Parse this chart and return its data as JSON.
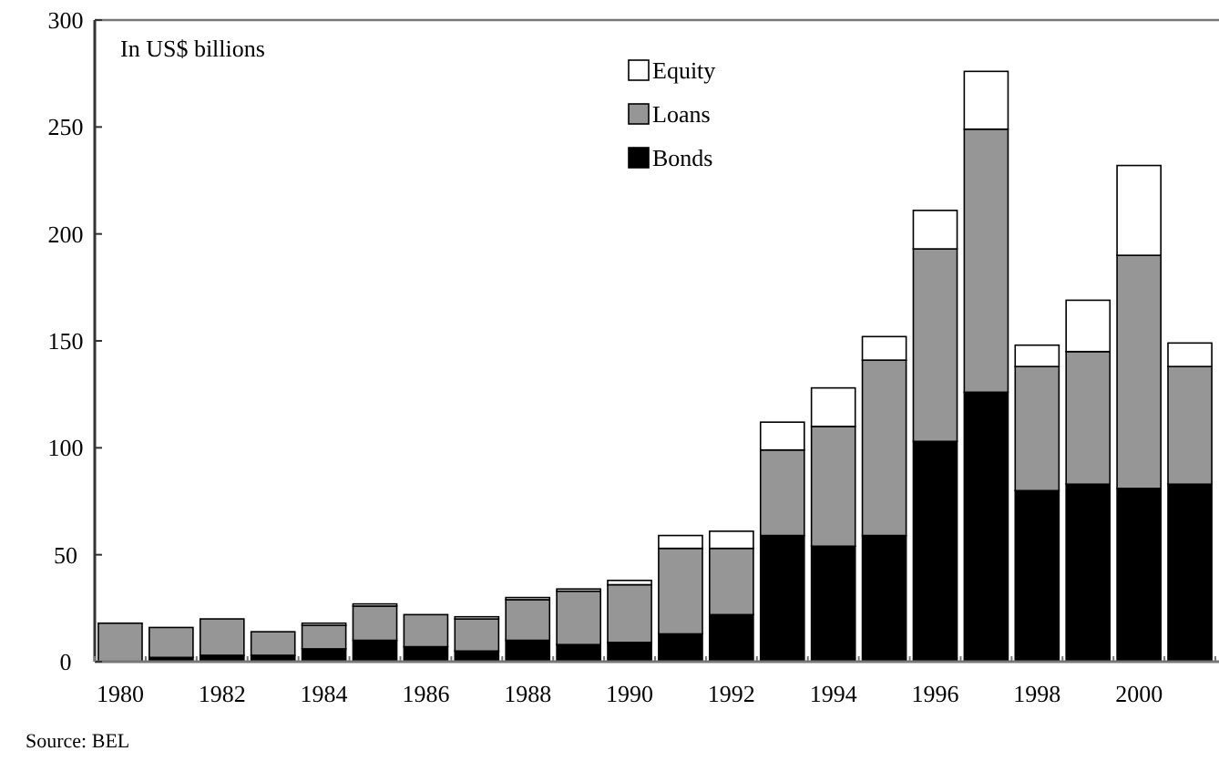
{
  "chart_data": {
    "type": "bar",
    "stacked": true,
    "ylabel": "In US$ billions",
    "categories": [
      "1980",
      null,
      "1982",
      null,
      "1984",
      null,
      "1986",
      null,
      "1988",
      null,
      "1990",
      null,
      "1992",
      null,
      "1994",
      null,
      "1996",
      null,
      "1998",
      null,
      "2000",
      null
    ],
    "series": [
      {
        "name": "Bonds",
        "color": "#000000",
        "values": [
          null,
          2,
          3,
          3,
          6,
          10,
          7,
          5,
          10,
          8,
          9,
          13,
          22,
          59,
          54,
          59,
          103,
          126,
          80,
          83,
          81,
          83
        ]
      },
      {
        "name": "Loans",
        "color": "#969696",
        "values": [
          18,
          14,
          17,
          11,
          11,
          16,
          15,
          15,
          19,
          25,
          27,
          40,
          31,
          40,
          56,
          82,
          90,
          123,
          58,
          62,
          109,
          55
        ]
      },
      {
        "name": "Equity",
        "color": "#ffffff",
        "values": [
          0,
          0,
          0,
          0,
          1,
          1,
          0,
          1,
          1,
          1,
          2,
          6,
          8,
          13,
          18,
          11,
          18,
          27,
          10,
          24,
          42,
          11
        ]
      }
    ],
    "ylim": [
      0,
      300
    ],
    "yticks": [
      0,
      50,
      100,
      150,
      200,
      250,
      300
    ],
    "grid": false,
    "legend": "top",
    "annotations": [
      "Source: BEL"
    ]
  }
}
